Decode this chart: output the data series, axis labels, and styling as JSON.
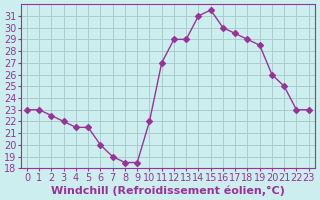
{
  "x": [
    0,
    1,
    2,
    3,
    4,
    5,
    6,
    7,
    8,
    9,
    10,
    11,
    12,
    13,
    14,
    15,
    16,
    17,
    18,
    19,
    20,
    21,
    22,
    23
  ],
  "y": [
    23,
    23,
    22.5,
    22,
    21.5,
    21.5,
    20,
    19,
    18.5,
    18.5,
    22,
    27,
    29,
    29,
    31,
    31.5,
    30,
    29.5,
    29,
    28.5,
    26,
    25,
    23,
    23
  ],
  "line_color": "#993399",
  "marker": "D",
  "marker_size": 3,
  "bg_color": "#cceeee",
  "grid_color": "#aacccc",
  "xlabel": "Windchill (Refroidissement éolien,°C)",
  "xlabel_fontsize": 8,
  "tick_fontsize": 7,
  "ylim": [
    18,
    32
  ],
  "xlim": [
    -0.5,
    23.5
  ],
  "yticks": [
    18,
    19,
    20,
    21,
    22,
    23,
    24,
    25,
    26,
    27,
    28,
    29,
    30,
    31
  ],
  "xticks": [
    0,
    1,
    2,
    3,
    4,
    5,
    6,
    7,
    8,
    9,
    10,
    11,
    12,
    13,
    14,
    15,
    16,
    17,
    18,
    19,
    20,
    21,
    22,
    23
  ]
}
